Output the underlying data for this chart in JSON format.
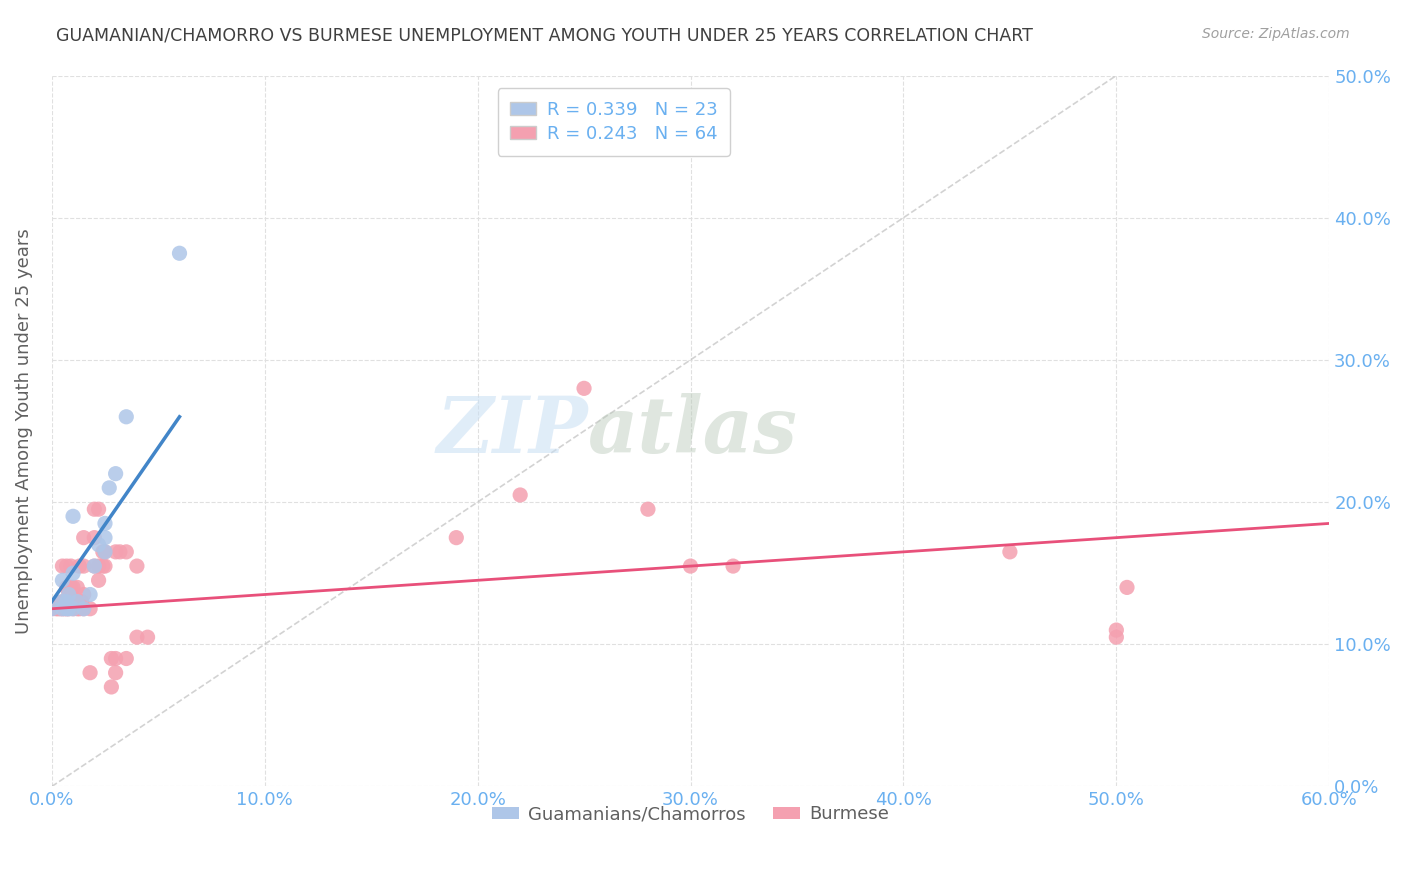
{
  "title": "GUAMANIAN/CHAMORRO VS BURMESE UNEMPLOYMENT AMONG YOUTH UNDER 25 YEARS CORRELATION CHART",
  "source": "Source: ZipAtlas.com",
  "ylabel": "Unemployment Among Youth under 25 years",
  "xlabel_ticks": [
    "0.0%",
    "10.0%",
    "20.0%",
    "30.0%",
    "40.0%",
    "50.0%",
    "60.0%"
  ],
  "xlabel_vals": [
    0.0,
    0.1,
    0.2,
    0.3,
    0.4,
    0.5,
    0.6
  ],
  "ylabel_ticks": [
    "0.0%",
    "10.0%",
    "20.0%",
    "30.0%",
    "40.0%",
    "50.0%"
  ],
  "ylabel_vals": [
    0.0,
    0.1,
    0.2,
    0.3,
    0.4,
    0.5
  ],
  "xlim": [
    0.0,
    0.6
  ],
  "ylim": [
    0.0,
    0.5
  ],
  "watermark_zip": "ZIP",
  "watermark_atlas": "atlas",
  "legend_items": [
    {
      "label": "R = 0.339   N = 23",
      "color": "#aec6e8"
    },
    {
      "label": "R = 0.243   N = 64",
      "color": "#f4a0b0"
    }
  ],
  "legend_bottom": [
    "Guamanians/Chamorros",
    "Burmese"
  ],
  "guamanian_scatter": [
    [
      0.0,
      0.125
    ],
    [
      0.005,
      0.125
    ],
    [
      0.005,
      0.13
    ],
    [
      0.005,
      0.145
    ],
    [
      0.007,
      0.125
    ],
    [
      0.007,
      0.13
    ],
    [
      0.008,
      0.125
    ],
    [
      0.008,
      0.135
    ],
    [
      0.01,
      0.125
    ],
    [
      0.01,
      0.15
    ],
    [
      0.01,
      0.19
    ],
    [
      0.012,
      0.13
    ],
    [
      0.015,
      0.125
    ],
    [
      0.018,
      0.135
    ],
    [
      0.02,
      0.155
    ],
    [
      0.022,
      0.17
    ],
    [
      0.025,
      0.165
    ],
    [
      0.025,
      0.175
    ],
    [
      0.025,
      0.185
    ],
    [
      0.027,
      0.21
    ],
    [
      0.03,
      0.22
    ],
    [
      0.035,
      0.26
    ],
    [
      0.06,
      0.375
    ]
  ],
  "burmese_scatter": [
    [
      0.0,
      0.125
    ],
    [
      0.002,
      0.125
    ],
    [
      0.003,
      0.125
    ],
    [
      0.004,
      0.125
    ],
    [
      0.004,
      0.128
    ],
    [
      0.005,
      0.125
    ],
    [
      0.005,
      0.13
    ],
    [
      0.005,
      0.155
    ],
    [
      0.006,
      0.125
    ],
    [
      0.006,
      0.13
    ],
    [
      0.007,
      0.125
    ],
    [
      0.007,
      0.13
    ],
    [
      0.007,
      0.14
    ],
    [
      0.007,
      0.155
    ],
    [
      0.008,
      0.125
    ],
    [
      0.008,
      0.13
    ],
    [
      0.008,
      0.135
    ],
    [
      0.009,
      0.14
    ],
    [
      0.009,
      0.155
    ],
    [
      0.01,
      0.125
    ],
    [
      0.01,
      0.13
    ],
    [
      0.01,
      0.14
    ],
    [
      0.012,
      0.125
    ],
    [
      0.012,
      0.14
    ],
    [
      0.013,
      0.125
    ],
    [
      0.013,
      0.155
    ],
    [
      0.014,
      0.13
    ],
    [
      0.015,
      0.125
    ],
    [
      0.015,
      0.135
    ],
    [
      0.015,
      0.155
    ],
    [
      0.015,
      0.175
    ],
    [
      0.018,
      0.08
    ],
    [
      0.018,
      0.125
    ],
    [
      0.02,
      0.155
    ],
    [
      0.02,
      0.175
    ],
    [
      0.02,
      0.195
    ],
    [
      0.022,
      0.145
    ],
    [
      0.022,
      0.155
    ],
    [
      0.022,
      0.195
    ],
    [
      0.024,
      0.155
    ],
    [
      0.024,
      0.165
    ],
    [
      0.025,
      0.155
    ],
    [
      0.025,
      0.165
    ],
    [
      0.028,
      0.07
    ],
    [
      0.028,
      0.09
    ],
    [
      0.03,
      0.08
    ],
    [
      0.03,
      0.09
    ],
    [
      0.03,
      0.165
    ],
    [
      0.032,
      0.165
    ],
    [
      0.035,
      0.09
    ],
    [
      0.035,
      0.165
    ],
    [
      0.04,
      0.105
    ],
    [
      0.04,
      0.155
    ],
    [
      0.045,
      0.105
    ],
    [
      0.19,
      0.175
    ],
    [
      0.22,
      0.205
    ],
    [
      0.25,
      0.28
    ],
    [
      0.28,
      0.195
    ],
    [
      0.3,
      0.155
    ],
    [
      0.32,
      0.155
    ],
    [
      0.45,
      0.165
    ],
    [
      0.5,
      0.105
    ],
    [
      0.5,
      0.11
    ],
    [
      0.505,
      0.14
    ]
  ],
  "guamanian_line": {
    "x": [
      0.0,
      0.06
    ],
    "y": [
      0.13,
      0.26
    ],
    "color": "#4285c8"
  },
  "burmese_line": {
    "x": [
      0.0,
      0.6
    ],
    "y": [
      0.125,
      0.185
    ],
    "color": "#e8507a"
  },
  "diagonal_line": {
    "x": [
      0.0,
      0.5
    ],
    "y": [
      0.0,
      0.5
    ],
    "color": "#c0c0c0"
  },
  "scatter_blue": "#aec6e8",
  "scatter_pink": "#f4a0b0",
  "background_color": "#ffffff",
  "grid_color": "#e0e0e0",
  "title_color": "#404040",
  "axis_label_color": "#606060",
  "tick_label_color": "#6ab0f0"
}
